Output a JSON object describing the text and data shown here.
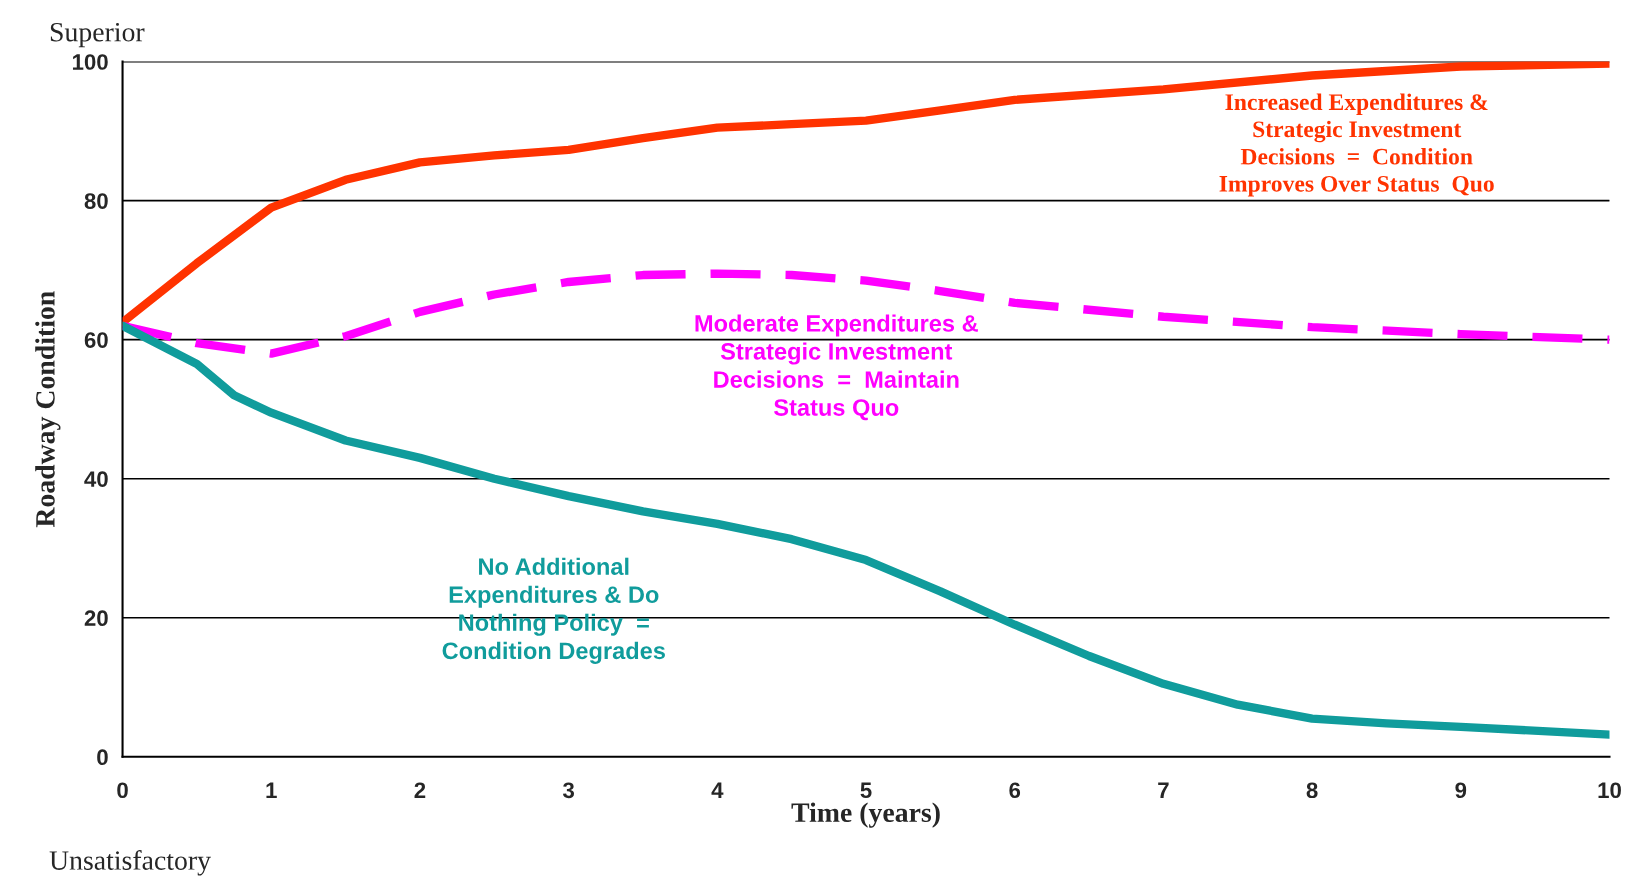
{
  "chart_data": {
    "type": "line",
    "xlabel": "Time (years)",
    "ylabel": "Roadway Condition",
    "xlim": [
      0,
      10
    ],
    "xticks": [
      0,
      1,
      2,
      3,
      4,
      5,
      6,
      7,
      8,
      9,
      10
    ],
    "ylim": [
      0,
      100
    ],
    "yticks": [
      0,
      20,
      40,
      60,
      80,
      100
    ],
    "grid": "y",
    "legend": false,
    "annotations": [
      "Superior",
      "Unsatisfactory"
    ],
    "series": [
      {
        "name": "Increased Expenditures &\nStrategic Investment\nDecisions  =  Condition\nImproves Over Status  Quo",
        "color": "#ff3300",
        "line_style": "solid",
        "x": [
          0,
          0.5,
          1,
          1.5,
          2,
          2.5,
          3,
          3.5,
          4,
          4.5,
          5,
          5.5,
          6,
          7,
          8,
          9,
          10
        ],
        "values": [
          62.5,
          71,
          79,
          83,
          85.5,
          86.5,
          87.3,
          89,
          90.5,
          91,
          91.5,
          93,
          94.5,
          96,
          98,
          99.3,
          99.7
        ]
      },
      {
        "name": "Moderate Expenditures &\nStrategic Investment\nDecisions  =  Maintain\nStatus Quo",
        "color": "#ff00ff",
        "line_style": "dashed",
        "x": [
          0,
          0.5,
          1,
          1.5,
          2,
          2.5,
          3,
          3.5,
          4,
          4.5,
          5,
          5.5,
          6,
          7,
          8,
          9,
          10
        ],
        "values": [
          62,
          59.5,
          58,
          60.5,
          64,
          66.5,
          68.3,
          69.3,
          69.5,
          69.3,
          68.5,
          67,
          65.3,
          63.3,
          61.8,
          60.8,
          60
        ]
      },
      {
        "name": "No Additional\nExpenditures & Do\nNothing Policy  =\nCondition Degrades",
        "color": "#109c9c",
        "line_style": "solid",
        "x": [
          0,
          0.5,
          0.75,
          1,
          1.5,
          2,
          2.5,
          3,
          3.5,
          4,
          4.5,
          5,
          5.5,
          6,
          6.5,
          7,
          7.5,
          8,
          8.5,
          9,
          10
        ],
        "values": [
          62,
          56.5,
          52,
          49.5,
          45.5,
          43,
          40,
          37.5,
          35.3,
          33.5,
          31.3,
          28.3,
          23.8,
          19,
          14.5,
          10.5,
          7.5,
          5.5,
          4.8,
          4.3,
          3.2
        ]
      }
    ]
  }
}
